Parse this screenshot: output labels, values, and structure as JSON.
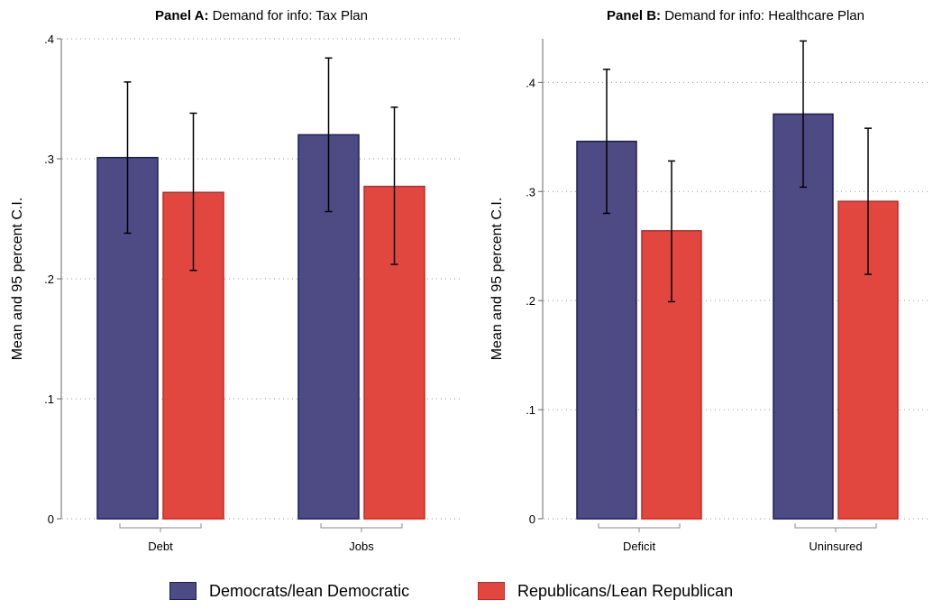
{
  "chart_data": [
    {
      "type": "bar",
      "title_bold": "Panel A:",
      "title": "Demand for info: Tax Plan",
      "ylabel": "Mean and 95 percent C.I.",
      "xlabel": "",
      "ylim": [
        0,
        0.4
      ],
      "yticks": [
        0,
        0.1,
        0.2,
        0.3,
        0.4
      ],
      "ytick_labels": [
        "0",
        ".1",
        ".2",
        ".3",
        ".4"
      ],
      "grid": true,
      "categories": [
        "Debt",
        "Jobs"
      ],
      "series": [
        {
          "name": "Democrats/lean Democratic",
          "color": "#4e4a84",
          "values": [
            0.301,
            0.32
          ],
          "ci_low": [
            0.238,
            0.256
          ],
          "ci_high": [
            0.364,
            0.384
          ]
        },
        {
          "name": "Republicans/Lean Republican",
          "color": "#e2473f",
          "values": [
            0.272,
            0.277
          ],
          "ci_low": [
            0.207,
            0.212
          ],
          "ci_high": [
            0.338,
            0.343
          ]
        }
      ]
    },
    {
      "type": "bar",
      "title_bold": "Panel B:",
      "title": "Demand for info: Healthcare Plan",
      "ylabel": "Mean and 95 percent C.I.",
      "xlabel": "",
      "ylim": [
        0,
        0.44
      ],
      "yticks": [
        0,
        0.1,
        0.2,
        0.3,
        0.4
      ],
      "ytick_labels": [
        "0",
        ".1",
        ".2",
        ".3",
        ".4"
      ],
      "grid": true,
      "categories": [
        "Deficit",
        "Uninsured"
      ],
      "series": [
        {
          "name": "Democrats/lean Democratic",
          "color": "#4e4a84",
          "values": [
            0.346,
            0.371
          ],
          "ci_low": [
            0.28,
            0.304
          ],
          "ci_high": [
            0.412,
            0.438
          ]
        },
        {
          "name": "Republicans/Lean Republican",
          "color": "#e2473f",
          "values": [
            0.264,
            0.291
          ],
          "ci_low": [
            0.199,
            0.224
          ],
          "ci_high": [
            0.328,
            0.358
          ]
        }
      ]
    }
  ],
  "legend": {
    "position": "bottom",
    "items": [
      {
        "label": "Democrats/lean Democratic",
        "color": "#4e4a84",
        "border": "#1f1c5a"
      },
      {
        "label": "Republicans/Lean Republican",
        "color": "#e2473f",
        "border": "#c42a22"
      }
    ]
  }
}
